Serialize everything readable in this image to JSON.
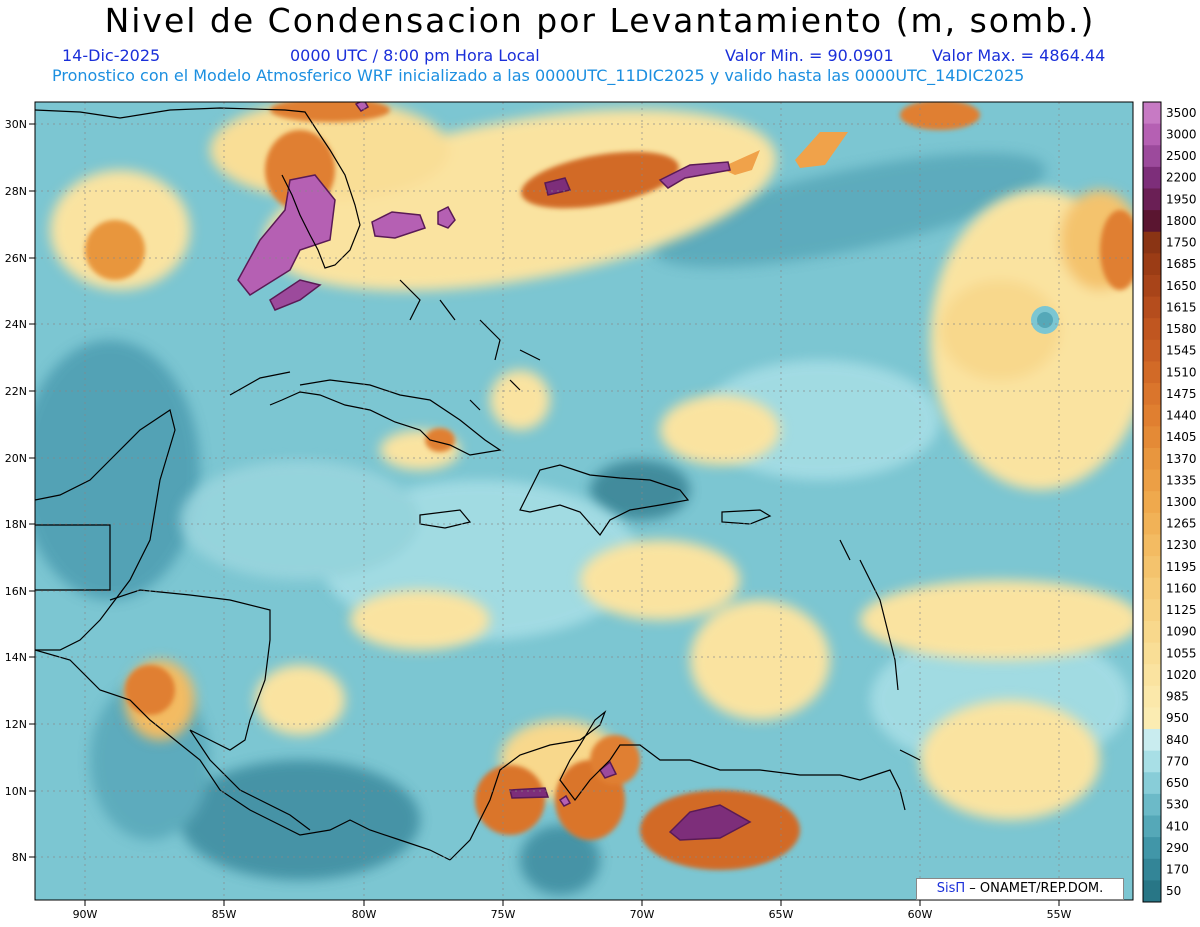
{
  "header": {
    "title": "Nivel de Condensacion por Levantamiento (m, somb.)",
    "date": "14-Dic-2025",
    "time": "0000 UTC / 8:00 pm Hora Local",
    "min_label": "Valor Min. = 90.0901",
    "max_label": "Valor Max. = 4864.44",
    "subtitle": "Pronostico con el Modelo Atmosferico WRF inicializado a las 0000UTC_11DIC2025 y valido hasta las  0000UTC_14DIC2025"
  },
  "map": {
    "lon_labels": [
      "90W",
      "85W",
      "80W",
      "75W",
      "70W",
      "65W",
      "60W",
      "55W"
    ],
    "lat_labels": [
      "30N",
      "28N",
      "26N",
      "24N",
      "22N",
      "20N",
      "18N",
      "16N",
      "14N",
      "12N",
      "10N",
      "8N"
    ]
  },
  "colorbar": {
    "labels": [
      "3500",
      "3000",
      "2500",
      "2200",
      "1950",
      "1800",
      "1750",
      "1685",
      "1650",
      "1615",
      "1580",
      "1545",
      "1510",
      "1475",
      "1440",
      "1405",
      "1370",
      "1335",
      "1300",
      "1265",
      "1230",
      "1195",
      "1160",
      "1125",
      "1090",
      "1055",
      "1020",
      "985",
      "950",
      "840",
      "770",
      "650",
      "530",
      "410",
      "290",
      "170",
      "50"
    ],
    "colors": [
      "#c77ac4",
      "#b560b3",
      "#9c4a9c",
      "#7d2e7a",
      "#6a1f55",
      "#5a1530",
      "#8a3414",
      "#9b3c15",
      "#a84419",
      "#b54d1d",
      "#c05620",
      "#c95f24",
      "#d26a27",
      "#da752c",
      "#e07f30",
      "#e48a36",
      "#e8963e",
      "#ec9f45",
      "#efa94d",
      "#f1b257",
      "#f3bb62",
      "#f4c36d",
      "#f6cb78",
      "#f7d282",
      "#f8d88c",
      "#f9de96",
      "#fae3a0",
      "#fbe8aa",
      "#fbecb2",
      "#c9ecef",
      "#a8dfe6",
      "#88cdd8",
      "#6cbac8",
      "#55a8b8",
      "#4196a8",
      "#338597",
      "#287686"
    ]
  },
  "credit": {
    "brand": "SisΠ",
    "org": "– ONAMET/REP.DOM."
  }
}
